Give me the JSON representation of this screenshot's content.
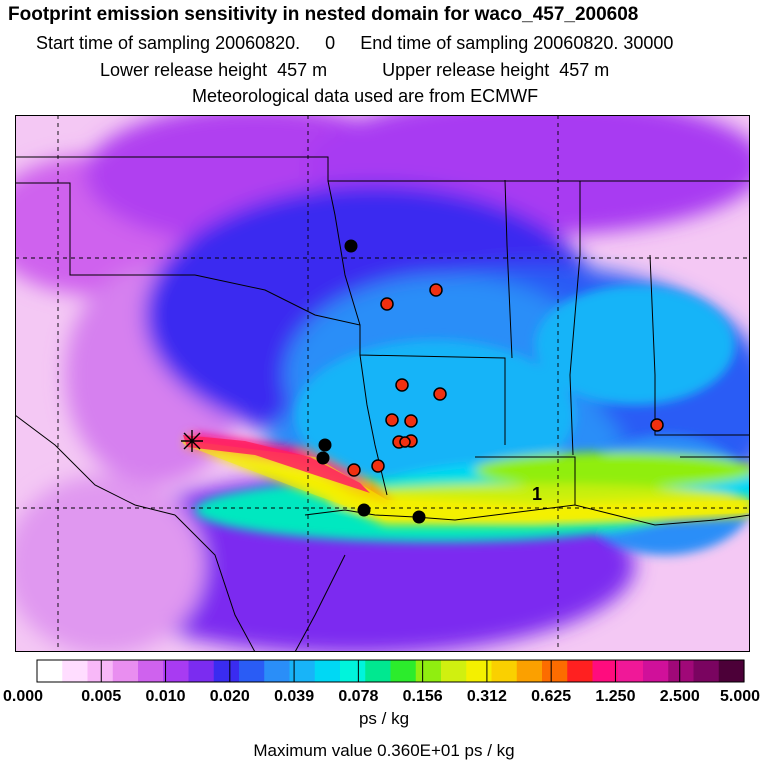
{
  "chart_data": {
    "type": "heatmap",
    "title": "Footprint emission sensitivity in nested domain for waco_457_200608",
    "subtitle_lines": [
      {
        "left": "Start time of sampling 20060820.     0",
        "right": "End time of sampling 20060820. 30000"
      },
      {
        "left": "Lower release height  457 m",
        "right": "Upper release height  457 m"
      },
      "Meteorological data used are from ECMWF"
    ],
    "colorbar_ticks": [
      "0.000",
      "0.005",
      "0.010",
      "0.020",
      "0.039",
      "0.078",
      "0.156",
      "0.312",
      "0.625",
      "1.250",
      "2.500",
      "5.000"
    ],
    "colorbar_colors": [
      "#ffffff",
      "#ffddff",
      "#f8b8f8",
      "#e98ef0",
      "#cf62ee",
      "#a83bf2",
      "#7b2cf0",
      "#3a2cf0",
      "#2a5cf5",
      "#2a8ef8",
      "#18b4f8",
      "#00d8f4",
      "#00f4dc",
      "#00e890",
      "#2cec2c",
      "#90ee10",
      "#d0f010",
      "#f4f000",
      "#fad000",
      "#fba000",
      "#fc6c00",
      "#ff2020",
      "#ff0c7e",
      "#f01898",
      "#d0109a",
      "#a00878",
      "#7a0460",
      "#4c0038"
    ],
    "units": "ps / kg",
    "max_value_label": "Maximum value  0.360E+01 ps / kg",
    "plume_label": "1",
    "release_marker": "*",
    "sites_red": 12,
    "sites_black": 5
  }
}
